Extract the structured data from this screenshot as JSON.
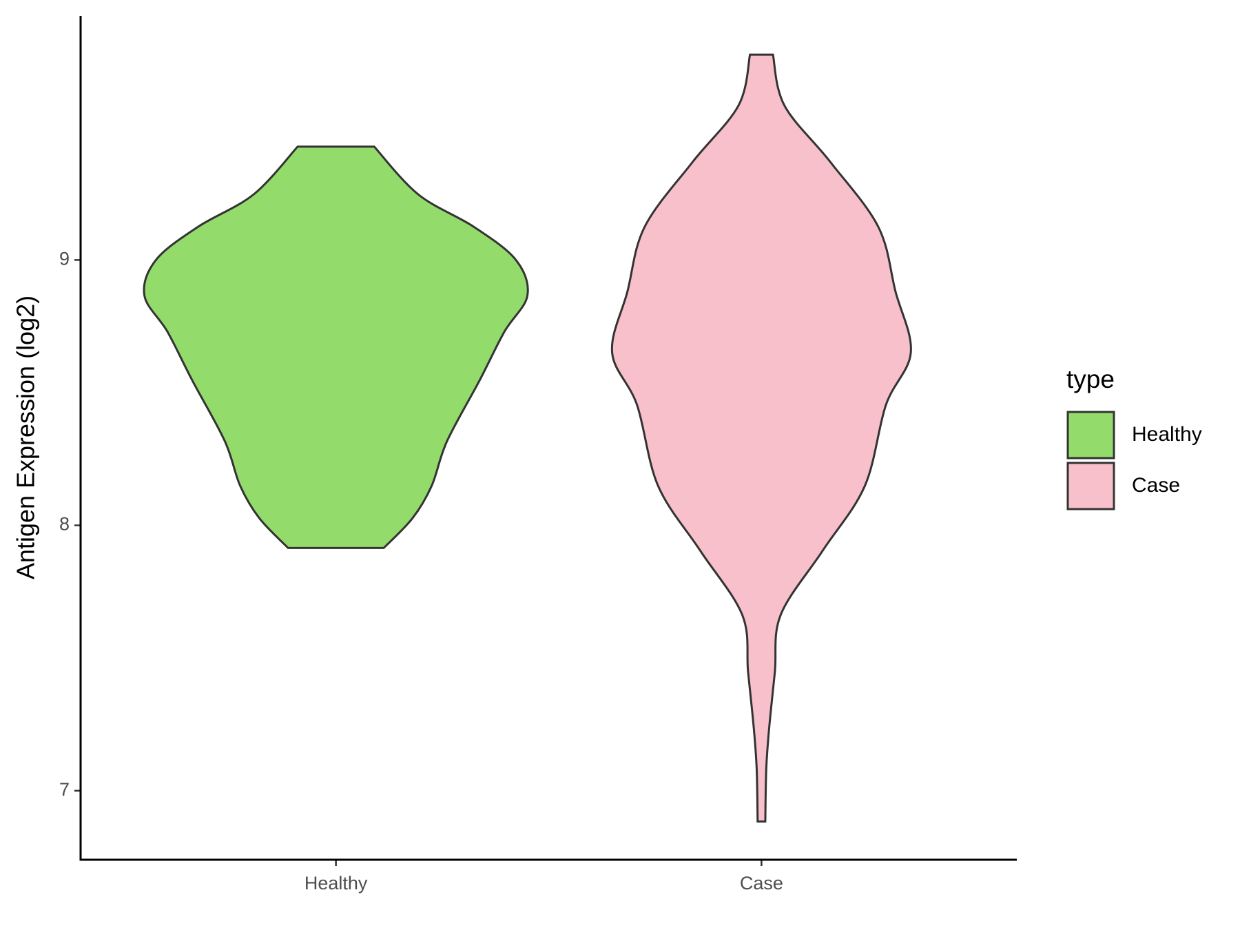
{
  "chart_data": {
    "type": "violin",
    "y_label": "Antigen Expression (log2)",
    "categories": [
      "Healthy",
      "Case"
    ],
    "legend_title": "type",
    "legend": "right",
    "ylim": [
      6.74,
      9.92
    ],
    "yticks": [
      7,
      8,
      9
    ],
    "outline_color": "#333333",
    "series": [
      {
        "name": "Healthy",
        "color": "#93dc6b",
        "y": [
          9.427,
          9.247,
          9.125,
          9.0,
          8.866,
          8.73,
          8.546,
          8.317,
          8.149,
          8.027,
          7.915
        ],
        "density": [
          0.2,
          0.43,
          0.72,
          0.94,
          1.0,
          0.88,
          0.75,
          0.58,
          0.5,
          0.4,
          0.25
        ]
      },
      {
        "name": "Case",
        "color": "#f7c0cb",
        "y": [
          9.774,
          9.582,
          9.369,
          9.125,
          8.881,
          8.652,
          8.454,
          8.149,
          7.905,
          7.662,
          7.448,
          7.235,
          7.082,
          6.884
        ],
        "density": [
          0.06,
          0.12,
          0.36,
          0.61,
          0.7,
          0.78,
          0.65,
          0.54,
          0.32,
          0.1,
          0.07,
          0.04,
          0.025,
          0.02
        ]
      }
    ]
  }
}
